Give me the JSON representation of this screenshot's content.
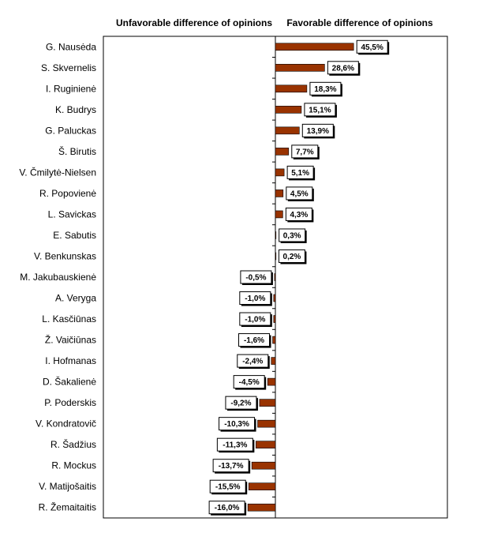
{
  "chart_data": {
    "type": "bar",
    "orientation": "horizontal",
    "header_left": "Unfavorable difference of opinions",
    "header_right": "Favorable difference of opinions",
    "categories": [
      "G. Nausėda",
      "S. Skvernelis",
      "I. Ruginienė",
      "K. Budrys",
      "G. Paluckas",
      "Š. Birutis",
      "V. Čmilytė-Nielsen",
      "R. Popovienė",
      "L. Savickas",
      "E. Sabutis",
      "V. Benkunskas",
      "M. Jakubauskienė",
      "A. Veryga",
      "L. Kasčiūnas",
      "Ž. Vaičiūnas",
      "I. Hofmanas",
      "D. Šakalienė",
      "P. Poderskis",
      "V. Kondratovič",
      "R. Šadžius",
      "R. Mockus",
      "V. Matijošaitis",
      "R. Žemaitaitis"
    ],
    "values": [
      45.5,
      28.6,
      18.3,
      15.1,
      13.9,
      7.7,
      5.1,
      4.5,
      4.3,
      0.3,
      0.2,
      -0.5,
      -1.0,
      -1.0,
      -1.6,
      -2.4,
      -4.5,
      -9.2,
      -10.3,
      -11.3,
      -13.7,
      -15.5,
      -16.0
    ],
    "value_labels": [
      "45,5%",
      "28,6%",
      "18,3%",
      "15,1%",
      "13,9%",
      "7,7%",
      "5,1%",
      "4,5%",
      "4,3%",
      "0,3%",
      "0,2%",
      "-0,5%",
      "-1,0%",
      "-1,0%",
      "-1,6%",
      "-2,4%",
      "-4,5%",
      "-9,2%",
      "-10,3%",
      "-11,3%",
      "-13,7%",
      "-15,5%",
      "-16,0%"
    ],
    "xlim": [
      -100,
      100
    ],
    "bar_color": "#993300",
    "grid": false,
    "legend": "none"
  }
}
